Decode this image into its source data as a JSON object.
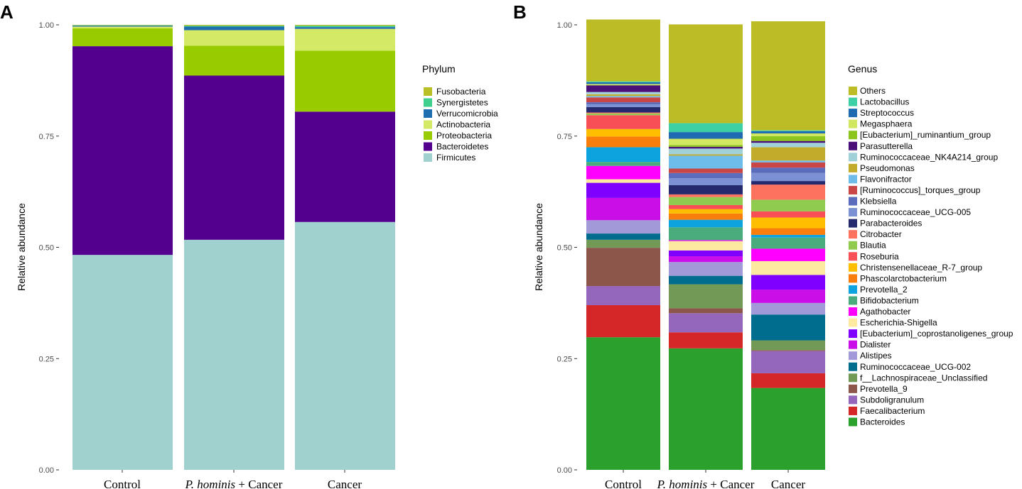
{
  "chart_data": [
    {
      "panel": "A",
      "type": "bar",
      "stacked": true,
      "ylabel": "Relative abundance",
      "xlabel": "",
      "ylim": [
        0,
        1
      ],
      "yticks": [
        "0.00",
        "0.25",
        "0.50",
        "0.75",
        "1.00"
      ],
      "categories": [
        {
          "label": "Control",
          "italic": "",
          "rest": ""
        },
        {
          "label": "",
          "italic": "P. hominis",
          "rest": " + Cancer"
        },
        {
          "label": "Cancer",
          "italic": "",
          "rest": ""
        }
      ],
      "legend_title": "Phylum",
      "legend_position": "right",
      "series": [
        {
          "name": "Firmicutes",
          "color": "#a1d1cf",
          "values": [
            0.483,
            0.517,
            0.557
          ]
        },
        {
          "name": "Bacteroidetes",
          "color": "#54008e",
          "values": [
            0.469,
            0.369,
            0.248
          ]
        },
        {
          "name": "Proteobacteria",
          "color": "#99cc00",
          "values": [
            0.04,
            0.067,
            0.137
          ]
        },
        {
          "name": "Actinobacteria",
          "color": "#d4ea66",
          "values": [
            0.004,
            0.035,
            0.049
          ]
        },
        {
          "name": "Verrucomicrobia",
          "color": "#1f6fb0",
          "values": [
            0.002,
            0.008,
            0.004
          ]
        },
        {
          "name": "Synergistetes",
          "color": "#3fcf8e",
          "values": [
            0.001,
            0.002,
            0.003
          ]
        },
        {
          "name": "Fusobacteria",
          "color": "#b8bf27",
          "values": [
            0.001,
            0.002,
            0.002
          ]
        }
      ]
    },
    {
      "panel": "B",
      "type": "bar",
      "stacked": true,
      "ylabel": "Relative abundance",
      "xlabel": "",
      "ylim": [
        0,
        1
      ],
      "yticks": [
        "0.00",
        "0.25",
        "0.50",
        "0.75",
        "1.00"
      ],
      "categories": [
        {
          "label": "Control",
          "italic": "",
          "rest": ""
        },
        {
          "label": "",
          "italic": "P. hominis",
          "rest": " + Cancer"
        },
        {
          "label": "Cancer",
          "italic": "",
          "rest": ""
        }
      ],
      "legend_title": "Genus",
      "legend_position": "right",
      "series": [
        {
          "name": "Bacteroides",
          "color": "#2ca02c",
          "values": [
            0.298,
            0.273,
            0.184
          ]
        },
        {
          "name": "Faecalibacterium",
          "color": "#d62728",
          "values": [
            0.072,
            0.036,
            0.033
          ]
        },
        {
          "name": "Subdoligranulum",
          "color": "#9467bd",
          "values": [
            0.043,
            0.043,
            0.05
          ]
        },
        {
          "name": "Prevotella_9",
          "color": "#8c564b",
          "values": [
            0.086,
            0.011,
            0.002
          ]
        },
        {
          "name": "f__Lachnospiraceae_Unclassified",
          "color": "#739957",
          "values": [
            0.018,
            0.054,
            0.022
          ]
        },
        {
          "name": "Ruminococcaceae_UCG-002",
          "color": "#006d8f",
          "values": [
            0.014,
            0.019,
            0.058
          ]
        },
        {
          "name": "Alistipes",
          "color": "#a29ad8",
          "values": [
            0.03,
            0.031,
            0.026
          ]
        },
        {
          "name": "Dialister",
          "color": "#c90ee8",
          "values": [
            0.05,
            0.013,
            0.03
          ]
        },
        {
          "name": "[Eubacterium]_coprostanoligenes_group",
          "color": "#8000ff",
          "values": [
            0.034,
            0.013,
            0.033
          ]
        },
        {
          "name": "Escherichia-Shigella",
          "color": "#fde9a0",
          "values": [
            0.008,
            0.021,
            0.031
          ]
        },
        {
          "name": "Agathobacter",
          "color": "#ff00ff",
          "values": [
            0.03,
            0.002,
            0.028
          ]
        },
        {
          "name": "Bifidobacterium",
          "color": "#4aab7d",
          "values": [
            0.009,
            0.029,
            0.025
          ]
        },
        {
          "name": "Prevotella_2",
          "color": "#0ca3df",
          "values": [
            0.033,
            0.017,
            0.006
          ]
        },
        {
          "name": "Phascolarctobacterium",
          "color": "#f97e0c",
          "values": [
            0.024,
            0.014,
            0.015
          ]
        },
        {
          "name": "Christensenellaceae_R-7_group",
          "color": "#ffbe00",
          "values": [
            0.017,
            0.01,
            0.024
          ]
        },
        {
          "name": "Roseburia",
          "color": "#f84e56",
          "values": [
            0.031,
            0.009,
            0.014
          ]
        },
        {
          "name": "Blautia",
          "color": "#8fcb4e",
          "values": [
            0.004,
            0.018,
            0.026
          ]
        },
        {
          "name": "Citrobacter",
          "color": "#fc725f",
          "values": [
            0.002,
            0.006,
            0.034
          ]
        },
        {
          "name": "Parabacteroides",
          "color": "#252a6e",
          "values": [
            0.012,
            0.021,
            0.008
          ]
        },
        {
          "name": "Ruminococcaceae_UCG-005",
          "color": "#7b91d4",
          "values": [
            0.006,
            0.015,
            0.018
          ]
        },
        {
          "name": "Klebsiella",
          "color": "#5b6cbc",
          "values": [
            0.005,
            0.012,
            0.012
          ]
        },
        {
          "name": "[Ruminococcus]_torques_group",
          "color": "#c94646",
          "values": [
            0.011,
            0.01,
            0.012
          ]
        },
        {
          "name": "Flavonifractor",
          "color": "#6ebce9",
          "values": [
            0.003,
            0.029,
            0.004
          ]
        },
        {
          "name": "Pseudomonas",
          "color": "#c2aa2a",
          "values": [
            0.004,
            0.003,
            0.03
          ]
        },
        {
          "name": "Ruminococcaceae_NK4A214_group",
          "color": "#a0d0d8",
          "values": [
            0.005,
            0.013,
            0.01
          ]
        },
        {
          "name": "Parasutterella",
          "color": "#4a0f78",
          "values": [
            0.015,
            0.004,
            0.004
          ]
        },
        {
          "name": "[Eubacterium]_ruminantium_group",
          "color": "#8cc51b",
          "values": [
            0.001,
            0.004,
            0.011
          ]
        },
        {
          "name": "Megasphaera",
          "color": "#d2e760",
          "values": [
            0.002,
            0.014,
            0.006
          ]
        },
        {
          "name": "Streptococcus",
          "color": "#1e6bb1",
          "values": [
            0.004,
            0.015,
            0.005
          ]
        },
        {
          "name": "Lactobacillus",
          "color": "#3ed0a5",
          "values": [
            0.002,
            0.02,
            0.002
          ]
        },
        {
          "name": "Others",
          "color": "#bcbc26",
          "values": [
            0.139,
            0.222,
            0.245
          ]
        }
      ]
    }
  ]
}
